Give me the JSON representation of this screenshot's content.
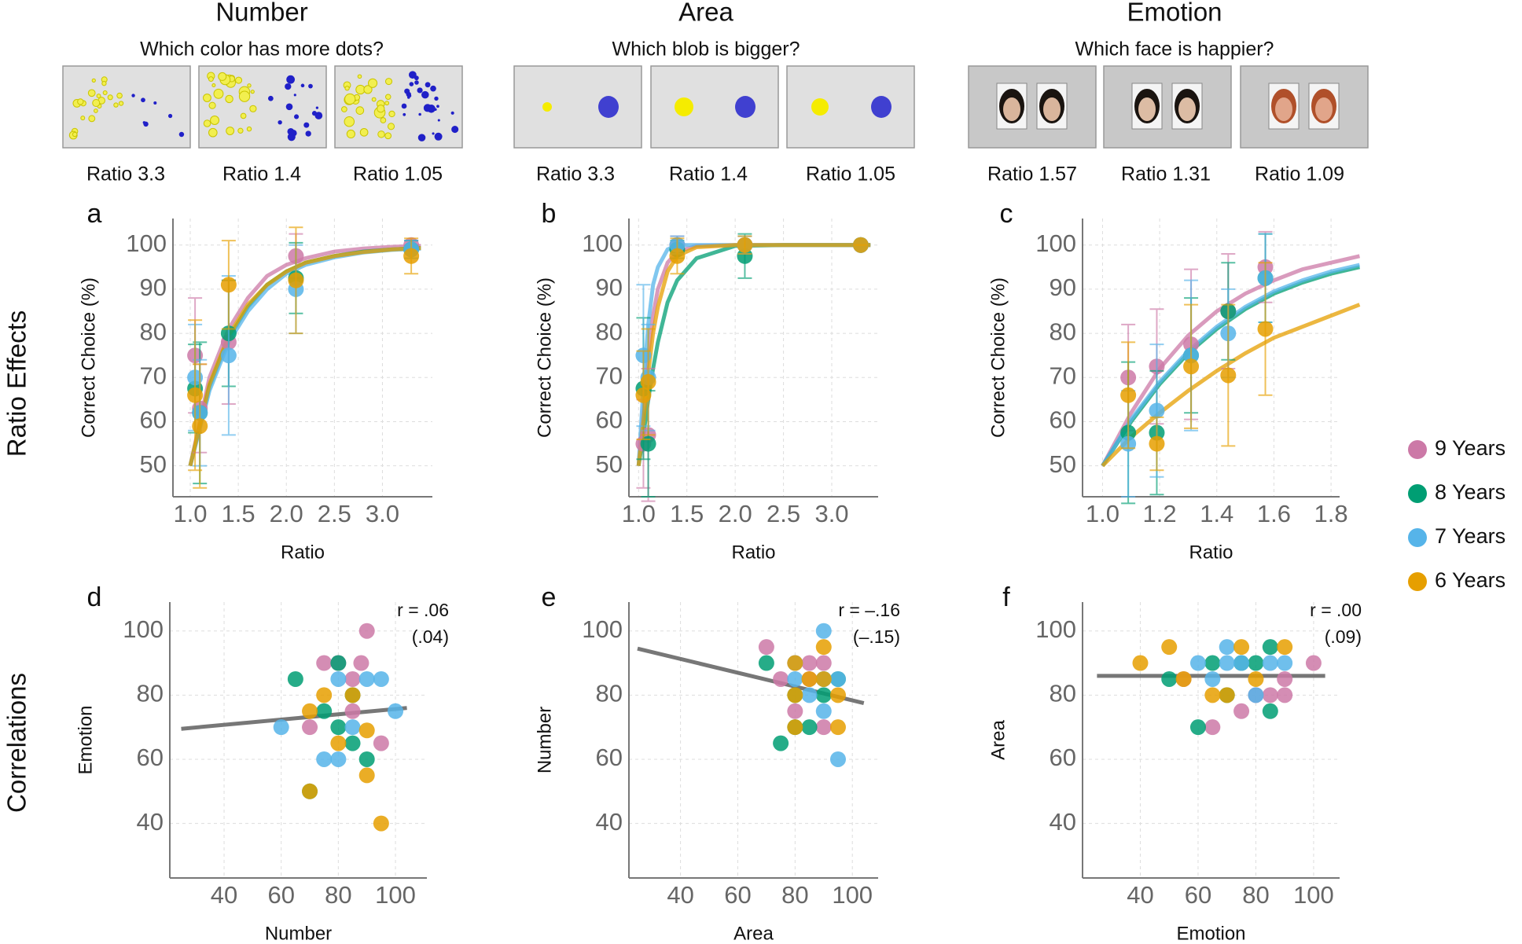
{
  "columns": [
    {
      "title": "Number",
      "question": "Which color has more dots?",
      "ratio_labels": [
        "Ratio 3.3",
        "Ratio 1.4",
        "Ratio 1.05"
      ]
    },
    {
      "title": "Area",
      "question": "Which blob is bigger?",
      "ratio_labels": [
        "Ratio 3.3",
        "Ratio 1.4",
        "Ratio 1.05"
      ]
    },
    {
      "title": "Emotion",
      "question": "Which face is happier?",
      "ratio_labels": [
        "Ratio 1.57",
        "Ratio 1.31",
        "Ratio 1.09"
      ]
    }
  ],
  "row_labels": [
    "Ratio Effects",
    "Correlations"
  ],
  "chart_data": [
    {
      "type": "scatter",
      "panel": "a",
      "x_label": "Ratio",
      "y_label": "Correct Choice (%)",
      "xlim": [
        0.82,
        3.52
      ],
      "ylim": [
        43,
        106
      ],
      "xticks": [
        {
          "value": 1,
          "label": "1.0"
        },
        1.5,
        {
          "value": 2,
          "label": "2.0"
        },
        2.5,
        {
          "value": 3,
          "label": "3.0"
        }
      ],
      "yticks": [
        50,
        60,
        70,
        80,
        90,
        100
      ],
      "grid": true,
      "x": [
        1.05,
        1.1,
        1.4,
        2.1,
        3.3
      ],
      "fit_x": [
        1.0,
        1.2,
        1.4,
        1.6,
        1.8,
        2.0,
        2.2,
        2.5,
        2.8,
        3.1,
        3.4
      ],
      "series": [
        {
          "name": "9 Years",
          "color": "#cc79a7",
          "values": [
            75,
            63,
            78,
            97.5,
            100
          ],
          "errors": [
            13,
            10,
            14,
            5,
            1
          ],
          "fit_values": [
            50,
            70,
            81,
            88,
            93,
            95.5,
            97,
            98.5,
            99.2,
            99.6,
            99.8
          ]
        },
        {
          "name": "8 Years",
          "color": "#009e73",
          "values": [
            67.5,
            62,
            80,
            92.5,
            99
          ],
          "errors": [
            10,
            16,
            12,
            8,
            2
          ],
          "fit_values": [
            50,
            68,
            79,
            86,
            91,
            94,
            96,
            97.5,
            98.5,
            99,
            99.3
          ]
        },
        {
          "name": "7 Years",
          "color": "#56b4e9",
          "values": [
            70,
            62,
            75,
            90,
            99
          ],
          "errors": [
            12,
            12,
            18,
            10,
            2
          ],
          "fit_values": [
            50,
            67,
            78,
            85,
            90,
            93.5,
            95.5,
            97.2,
            98.3,
            98.9,
            99.2
          ]
        },
        {
          "name": "6 Years",
          "color": "#e69f00",
          "values": [
            66,
            59,
            91,
            92,
            97.5
          ],
          "errors": [
            17,
            14,
            10,
            12,
            4
          ],
          "fit_values": [
            50,
            68.5,
            79.5,
            86.5,
            91,
            94,
            96,
            97.5,
            98.4,
            99,
            99.3
          ]
        }
      ]
    },
    {
      "type": "scatter",
      "panel": "b",
      "x_label": "Ratio",
      "y_label": "Correct Choice (%)",
      "xlim": [
        0.9,
        3.48
      ],
      "ylim": [
        43,
        106
      ],
      "xticks": [
        {
          "value": 1,
          "label": "1.0"
        },
        1.5,
        {
          "value": 2,
          "label": "2.0"
        },
        2.5,
        {
          "value": 3,
          "label": "3.0"
        }
      ],
      "yticks": [
        50,
        60,
        70,
        80,
        90,
        100
      ],
      "grid": true,
      "x": [
        1.05,
        1.1,
        1.4,
        2.1,
        3.3
      ],
      "fit_x": [
        1.0,
        1.05,
        1.1,
        1.15,
        1.2,
        1.3,
        1.4,
        1.6,
        2.0,
        2.5,
        3.4
      ],
      "series": [
        {
          "name": "9 Years",
          "color": "#cc79a7",
          "values": [
            55,
            57,
            100,
            100,
            100
          ],
          "errors": [
            10,
            15,
            2,
            2,
            0
          ],
          "fit_values": [
            50,
            62,
            75,
            84,
            90,
            96,
            98.5,
            99.8,
            100,
            100,
            100
          ]
        },
        {
          "name": "8 Years",
          "color": "#009e73",
          "values": [
            67.5,
            55,
            99,
            97.5,
            100
          ],
          "errors": [
            16,
            12,
            2,
            5,
            0
          ],
          "fit_values": [
            50,
            57,
            65,
            72,
            78,
            87,
            92,
            97,
            99.8,
            100,
            100
          ]
        },
        {
          "name": "7 Years",
          "color": "#56b4e9",
          "values": [
            75,
            70,
            100,
            100,
            100
          ],
          "errors": [
            16,
            12,
            2,
            2,
            0
          ],
          "fit_values": [
            50,
            68,
            82,
            91,
            95,
            99,
            100,
            100,
            100,
            100,
            100
          ]
        },
        {
          "name": "6 Years",
          "color": "#e69f00",
          "values": [
            66,
            69,
            97.5,
            100,
            100
          ],
          "errors": [
            10,
            12,
            4,
            2,
            0
          ],
          "fit_values": [
            50,
            60,
            71,
            80,
            86,
            94,
            97.5,
            99.5,
            100,
            100,
            100
          ]
        }
      ]
    },
    {
      "type": "scatter",
      "panel": "c",
      "x_label": "Ratio",
      "y_label": "Correct Choice (%)",
      "xlim": [
        0.93,
        1.83
      ],
      "ylim": [
        43,
        106
      ],
      "xticks": [
        {
          "value": 1,
          "label": "1.0"
        },
        1.2,
        1.4,
        1.6,
        1.8
      ],
      "yticks": [
        50,
        60,
        70,
        80,
        90,
        100
      ],
      "grid": true,
      "x": [
        1.09,
        1.19,
        1.31,
        1.44,
        1.57
      ],
      "fit_x": [
        1.0,
        1.1,
        1.2,
        1.3,
        1.4,
        1.5,
        1.6,
        1.7,
        1.8,
        1.9
      ],
      "series": [
        {
          "name": "9 Years",
          "color": "#cc79a7",
          "values": [
            70,
            72.5,
            77.5,
            85,
            95
          ],
          "errors": [
            12,
            13,
            17,
            13,
            8
          ],
          "fit_values": [
            50,
            62,
            72,
            79.5,
            85,
            89,
            92,
            94.5,
            96,
            97.5
          ]
        },
        {
          "name": "8 Years",
          "color": "#009e73",
          "values": [
            57.5,
            57.5,
            75,
            85,
            92.5
          ],
          "errors": [
            16,
            14,
            13,
            11,
            10
          ],
          "fit_values": [
            50,
            60,
            68.5,
            75.5,
            81,
            85.5,
            89,
            91.5,
            93.5,
            95
          ]
        },
        {
          "name": "7 Years",
          "color": "#56b4e9",
          "values": [
            55,
            62.5,
            75,
            80,
            92.5
          ],
          "errors": [
            12,
            15,
            17,
            10,
            10
          ],
          "fit_values": [
            50,
            60.5,
            69,
            76,
            81.5,
            86,
            89.5,
            92,
            94,
            95.5
          ]
        },
        {
          "name": "6 Years",
          "color": "#e69f00",
          "values": [
            66,
            55,
            72.5,
            70.5,
            81
          ],
          "errors": [
            12,
            6,
            14,
            16,
            15
          ],
          "fit_values": [
            50,
            56.5,
            62,
            67,
            71.5,
            75.5,
            79,
            81.5,
            84,
            86.5
          ]
        }
      ]
    },
    {
      "type": "scatter",
      "panel": "d",
      "x_label": "Number",
      "y_label": "Emotion",
      "xlim": [
        21,
        111
      ],
      "ylim": [
        23,
        109
      ],
      "xticks": [
        40,
        60,
        80,
        100
      ],
      "yticks": [
        40,
        60,
        80,
        100
      ],
      "grid": true,
      "annotation": [
        "r = .06",
        "(.04)"
      ],
      "fit_x": [
        25,
        104
      ],
      "fit_values": [
        69.5,
        76
      ],
      "fit_color": "#555555",
      "series": [
        {
          "name": "9 Years",
          "color": "#cc79a7",
          "x": [
            90,
            88,
            75,
            85,
            85,
            70,
            95,
            80
          ],
          "values": [
            100,
            90,
            90,
            85,
            75,
            70,
            65,
            90
          ]
        },
        {
          "name": "8 Years",
          "color": "#009e73",
          "x": [
            65,
            85,
            75,
            80,
            90,
            85,
            70,
            80
          ],
          "values": [
            85,
            80,
            75,
            70,
            60,
            65,
            50,
            90
          ]
        },
        {
          "name": "7 Years",
          "color": "#56b4e9",
          "x": [
            60,
            80,
            95,
            90,
            75,
            80,
            85,
            100
          ],
          "values": [
            70,
            85,
            85,
            85,
            60,
            60,
            70,
            75
          ]
        },
        {
          "name": "6 Years",
          "color": "#e69f00",
          "x": [
            75,
            85,
            80,
            90,
            90,
            95,
            70,
            70
          ],
          "values": [
            80,
            80,
            65,
            69,
            55,
            40,
            50,
            75
          ]
        }
      ]
    },
    {
      "type": "scatter",
      "panel": "e",
      "x_label": "Area",
      "y_label": "Number",
      "xlim": [
        22,
        109
      ],
      "ylim": [
        23,
        109
      ],
      "xticks": [
        40,
        60,
        80,
        100
      ],
      "yticks": [
        40,
        60,
        80,
        100
      ],
      "grid": true,
      "annotation": [
        "r = –.16",
        "(–.15)"
      ],
      "fit_x": [
        25,
        104
      ],
      "fit_values": [
        94.5,
        77.5
      ],
      "fit_color": "#555555",
      "series": [
        {
          "name": "9 Years",
          "color": "#cc79a7",
          "x": [
            70,
            75,
            80,
            85,
            90,
            80,
            90,
            85
          ],
          "values": [
            95,
            85,
            90,
            90,
            90,
            75,
            70,
            85
          ]
        },
        {
          "name": "8 Years",
          "color": "#009e73",
          "x": [
            70,
            75,
            80,
            85,
            90,
            95,
            80,
            90
          ],
          "values": [
            90,
            65,
            80,
            70,
            85,
            85,
            70,
            80
          ]
        },
        {
          "name": "7 Years",
          "color": "#56b4e9",
          "x": [
            80,
            90,
            90,
            95,
            90,
            95,
            80,
            85
          ],
          "values": [
            90,
            100,
            85,
            85,
            75,
            60,
            85,
            80
          ]
        },
        {
          "name": "6 Years",
          "color": "#e69f00",
          "x": [
            80,
            80,
            90,
            95,
            95,
            85,
            80,
            90
          ],
          "values": [
            90,
            80,
            95,
            80,
            70,
            85,
            70,
            85
          ]
        }
      ]
    },
    {
      "type": "scatter",
      "panel": "f",
      "x_label": "Emotion",
      "y_label": "Area",
      "xlim": [
        20,
        109
      ],
      "ylim": [
        23,
        109
      ],
      "xticks": [
        40,
        60,
        80,
        100
      ],
      "yticks": [
        40,
        60,
        80,
        100
      ],
      "grid": true,
      "annotation": [
        "r = .00",
        "(.09)"
      ],
      "fit_x": [
        25,
        104
      ],
      "fit_values": [
        86,
        86
      ],
      "fit_color": "#555555",
      "series": [
        {
          "name": "9 Years",
          "color": "#cc79a7",
          "x": [
            55,
            65,
            75,
            80,
            85,
            90,
            100,
            90
          ],
          "values": [
            85,
            70,
            75,
            80,
            80,
            85,
            90,
            80
          ]
        },
        {
          "name": "8 Years",
          "color": "#009e73",
          "x": [
            50,
            60,
            65,
            75,
            85,
            85,
            80,
            70
          ],
          "values": [
            85,
            70,
            90,
            90,
            95,
            75,
            90,
            80
          ]
        },
        {
          "name": "7 Years",
          "color": "#56b4e9",
          "x": [
            60,
            70,
            75,
            85,
            90,
            80,
            70,
            65
          ],
          "values": [
            90,
            95,
            90,
            90,
            90,
            80,
            90,
            85
          ]
        },
        {
          "name": "6 Years",
          "color": "#e69f00",
          "x": [
            40,
            50,
            55,
            65,
            75,
            90,
            80,
            70
          ],
          "values": [
            90,
            95,
            85,
            80,
            95,
            95,
            85,
            80
          ]
        }
      ]
    }
  ]
}
